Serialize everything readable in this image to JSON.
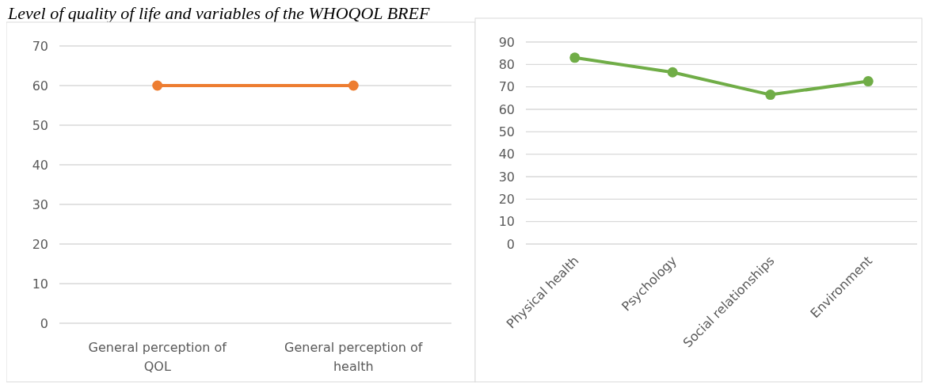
{
  "chart_data": [
    {
      "type": "line",
      "title": "Level of quality of life and variables of the WHOQOL BREF",
      "categories": [
        "General perception of QOL",
        "General perception of health"
      ],
      "series": [
        {
          "color": "#ed7d31",
          "values": [
            60,
            60
          ]
        }
      ],
      "ylim": [
        0,
        70
      ],
      "yticks": [
        0,
        10,
        20,
        30,
        40,
        50,
        60,
        70
      ],
      "grid": "y",
      "marker": "circle",
      "line_style": "solid"
    },
    {
      "type": "line",
      "categories": [
        "Physical health",
        "Psychology",
        "Social relationships",
        "Environment"
      ],
      "series": [
        {
          "color": "#70ad47",
          "values": [
            83,
            76.5,
            66.5,
            72.5
          ]
        }
      ],
      "ylim": [
        0,
        90
      ],
      "yticks": [
        0,
        10,
        20,
        30,
        40,
        50,
        60,
        70,
        80,
        90
      ],
      "grid": "y",
      "marker": "circle",
      "line_style": "solid"
    }
  ]
}
